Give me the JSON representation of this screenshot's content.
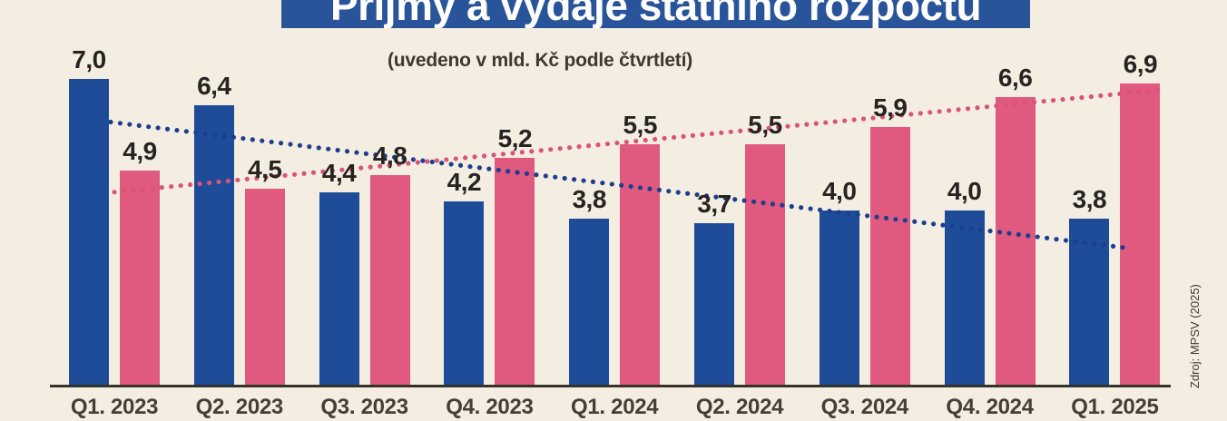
{
  "page": {
    "background": "#f3eee1"
  },
  "header": {
    "title": "Příjmy a výdaje státního rozpočtu",
    "subtitle": "(uvedeno v mld. Kč podle čtvrtletí)",
    "band_color": "#29549a"
  },
  "source_note": "Zdroj: MPSV (2025)",
  "chart_data": {
    "type": "bar",
    "title": "Příjmy a výdaje státního rozpočtu",
    "subtitle": "(uvedeno v mld. Kč podle čtvrtletí)",
    "unit": "mld. Kč",
    "categories": [
      "Q1. 2023",
      "Q2. 2023",
      "Q3. 2023",
      "Q4. 2023",
      "Q1. 2024",
      "Q2. 2024",
      "Q3. 2024",
      "Q4. 2024",
      "Q1. 2025"
    ],
    "series": [
      {
        "name": "blue",
        "color": "#1e4c99",
        "values": [
          7.0,
          6.4,
          4.4,
          4.2,
          3.8,
          3.7,
          4.0,
          4.0,
          3.8
        ],
        "labels": [
          "7,0",
          "6,4",
          "4,4",
          "4,2",
          "3,8",
          "3,7",
          "4,0",
          "4,0",
          "3,8"
        ]
      },
      {
        "name": "pink",
        "color": "#e0597f",
        "values": [
          4.9,
          4.5,
          4.8,
          5.2,
          5.5,
          5.5,
          5.9,
          6.6,
          6.9
        ],
        "labels": [
          "4,9",
          "4,5",
          "4,8",
          "5,2",
          "5,5",
          "5,5",
          "5,9",
          "6,6",
          "6,9"
        ]
      }
    ],
    "trendlines": [
      {
        "series": "blue",
        "style": "dotted",
        "color": "#1d3e8e",
        "direction": "declining"
      },
      {
        "series": "pink",
        "style": "dotted",
        "color": "#d9537a",
        "direction": "rising"
      }
    ],
    "ylim": [
      0,
      9
    ],
    "grid": false,
    "legend_position": "none"
  }
}
